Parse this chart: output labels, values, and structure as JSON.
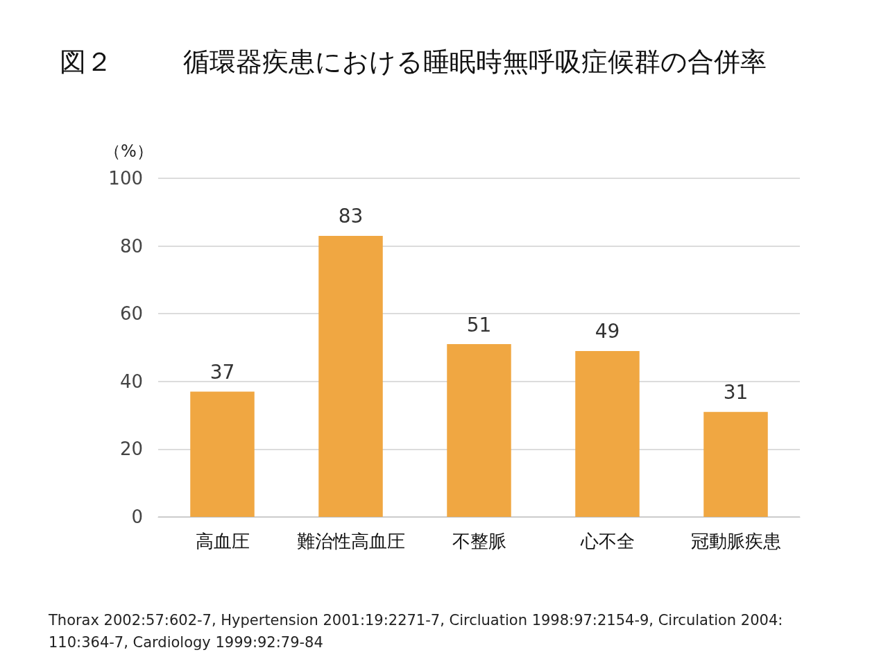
{
  "chart_data": {
    "type": "bar",
    "title": "図２",
    "subtitle": "循環器疾患における睡眠時無呼吸症候群の合併率",
    "ylabel": "（%）",
    "categories": [
      "高血圧",
      "難治性高血圧",
      "不整脈",
      "心不全",
      "冠動脈疾患"
    ],
    "values": [
      37,
      83,
      51,
      49,
      31
    ],
    "color": "#f0a742",
    "ylim": [
      0,
      100
    ],
    "yticks": [
      0,
      20,
      40,
      60,
      80,
      100
    ],
    "grid": "y",
    "data_labels": true,
    "annotations": [
      "Thorax 2002:57:602-7, Hypertension 2001:19:2271-7, Circluation 1998:97:2154-9, Circulation 2004: 110:364-7, Cardiology 1999:92:79-84"
    ]
  }
}
